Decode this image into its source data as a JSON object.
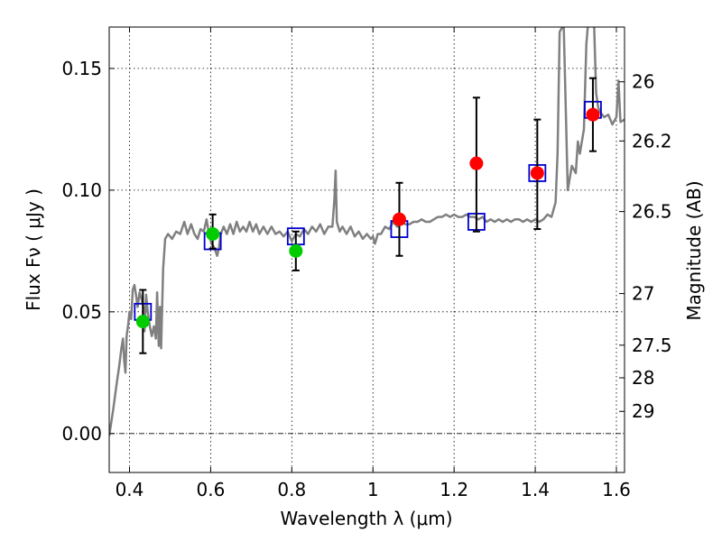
{
  "chart_data": {
    "type": "scatter",
    "xlabel": "Wavelength  λ (μm)",
    "ylabel": "Flux  Fν  ( μJy )",
    "y2label": "Magnitude (AB)",
    "xlim": [
      0.35,
      1.62
    ],
    "ylim": [
      -0.016,
      0.167
    ],
    "grid": true,
    "x_ticks": [
      {
        "value": 0.4,
        "label": "0.4"
      },
      {
        "value": 0.6,
        "label": "0.6"
      },
      {
        "value": 0.8,
        "label": "0.8"
      },
      {
        "value": 1.0,
        "label": "1"
      },
      {
        "value": 1.2,
        "label": "1.2"
      },
      {
        "value": 1.4,
        "label": "1.4"
      },
      {
        "value": 1.6,
        "label": "1.6"
      }
    ],
    "y_ticks": [
      {
        "value": 0.0,
        "label": "0.00"
      },
      {
        "value": 0.05,
        "label": "0.05"
      },
      {
        "value": 0.1,
        "label": "0.10"
      },
      {
        "value": 0.15,
        "label": "0.15"
      }
    ],
    "y2_ticks": [
      {
        "flux": 0.1445,
        "label": "26"
      },
      {
        "flux": 0.1202,
        "label": "26.2"
      },
      {
        "flux": 0.0912,
        "label": "26.5"
      },
      {
        "flux": 0.0575,
        "label": "27"
      },
      {
        "flux": 0.0363,
        "label": "27.5"
      },
      {
        "flux": 0.0229,
        "label": "28"
      },
      {
        "flux": 0.0091,
        "label": "29"
      }
    ],
    "series": [
      {
        "kind": "line",
        "color": "#808080",
        "points": [
          [
            0.35,
            -0.001
          ],
          [
            0.36,
            0.01
          ],
          [
            0.368,
            0.02
          ],
          [
            0.375,
            0.028
          ],
          [
            0.38,
            0.035
          ],
          [
            0.384,
            0.039
          ],
          [
            0.387,
            0.03
          ],
          [
            0.39,
            0.025
          ],
          [
            0.393,
            0.04
          ],
          [
            0.397,
            0.045
          ],
          [
            0.4,
            0.05
          ],
          [
            0.404,
            0.047
          ],
          [
            0.408,
            0.059
          ],
          [
            0.412,
            0.061
          ],
          [
            0.416,
            0.057
          ],
          [
            0.42,
            0.052
          ],
          [
            0.425,
            0.058
          ],
          [
            0.43,
            0.055
          ],
          [
            0.434,
            0.052
          ],
          [
            0.437,
            0.042
          ],
          [
            0.441,
            0.057
          ],
          [
            0.445,
            0.05
          ],
          [
            0.45,
            0.044
          ],
          [
            0.455,
            0.04
          ],
          [
            0.46,
            0.044
          ],
          [
            0.465,
            0.039
          ],
          [
            0.468,
            0.058
          ],
          [
            0.472,
            0.036
          ],
          [
            0.475,
            0.052
          ],
          [
            0.478,
            0.035
          ],
          [
            0.483,
            0.068
          ],
          [
            0.488,
            0.08
          ],
          [
            0.495,
            0.082
          ],
          [
            0.505,
            0.08
          ],
          [
            0.515,
            0.083
          ],
          [
            0.525,
            0.082
          ],
          [
            0.535,
            0.087
          ],
          [
            0.543,
            0.082
          ],
          [
            0.552,
            0.086
          ],
          [
            0.56,
            0.082
          ],
          [
            0.568,
            0.08
          ],
          [
            0.575,
            0.084
          ],
          [
            0.583,
            0.083
          ],
          [
            0.59,
            0.088
          ],
          [
            0.596,
            0.082
          ],
          [
            0.602,
            0.078
          ],
          [
            0.607,
            0.077
          ],
          [
            0.612,
            0.075
          ],
          [
            0.616,
            0.073
          ],
          [
            0.62,
            0.076
          ],
          [
            0.625,
            0.082
          ],
          [
            0.632,
            0.085
          ],
          [
            0.64,
            0.082
          ],
          [
            0.648,
            0.086
          ],
          [
            0.656,
            0.082
          ],
          [
            0.664,
            0.087
          ],
          [
            0.672,
            0.083
          ],
          [
            0.68,
            0.085
          ],
          [
            0.688,
            0.083
          ],
          [
            0.696,
            0.087
          ],
          [
            0.704,
            0.083
          ],
          [
            0.712,
            0.086
          ],
          [
            0.72,
            0.082
          ],
          [
            0.73,
            0.085
          ],
          [
            0.74,
            0.082
          ],
          [
            0.75,
            0.085
          ],
          [
            0.76,
            0.082
          ],
          [
            0.77,
            0.083
          ],
          [
            0.78,
            0.081
          ],
          [
            0.79,
            0.083
          ],
          [
            0.8,
            0.079
          ],
          [
            0.81,
            0.082
          ],
          [
            0.82,
            0.081
          ],
          [
            0.83,
            0.084
          ],
          [
            0.84,
            0.082
          ],
          [
            0.85,
            0.085
          ],
          [
            0.86,
            0.083
          ],
          [
            0.87,
            0.086
          ],
          [
            0.88,
            0.082
          ],
          [
            0.89,
            0.085
          ],
          [
            0.9,
            0.085
          ],
          [
            0.905,
            0.096
          ],
          [
            0.908,
            0.108
          ],
          [
            0.911,
            0.087
          ],
          [
            0.918,
            0.083
          ],
          [
            0.925,
            0.085
          ],
          [
            0.935,
            0.082
          ],
          [
            0.945,
            0.085
          ],
          [
            0.955,
            0.081
          ],
          [
            0.965,
            0.083
          ],
          [
            0.975,
            0.08
          ],
          [
            0.985,
            0.082
          ],
          [
            0.995,
            0.08
          ],
          [
            1.0,
            0.081
          ],
          [
            1.005,
            0.078
          ],
          [
            1.012,
            0.082
          ],
          [
            1.02,
            0.082
          ],
          [
            1.03,
            0.085
          ],
          [
            1.04,
            0.084
          ],
          [
            1.05,
            0.087
          ],
          [
            1.06,
            0.085
          ],
          [
            1.07,
            0.087
          ],
          [
            1.08,
            0.086
          ],
          [
            1.09,
            0.086
          ],
          [
            1.1,
            0.087
          ],
          [
            1.11,
            0.087
          ],
          [
            1.12,
            0.088
          ],
          [
            1.13,
            0.087
          ],
          [
            1.14,
            0.087
          ],
          [
            1.15,
            0.088
          ],
          [
            1.16,
            0.089
          ],
          [
            1.17,
            0.089
          ],
          [
            1.18,
            0.09
          ],
          [
            1.19,
            0.089
          ],
          [
            1.2,
            0.09
          ],
          [
            1.21,
            0.089
          ],
          [
            1.22,
            0.089
          ],
          [
            1.23,
            0.09
          ],
          [
            1.24,
            0.089
          ],
          [
            1.25,
            0.089
          ],
          [
            1.26,
            0.088
          ],
          [
            1.27,
            0.089
          ],
          [
            1.28,
            0.087
          ],
          [
            1.29,
            0.088
          ],
          [
            1.3,
            0.087
          ],
          [
            1.31,
            0.088
          ],
          [
            1.32,
            0.087
          ],
          [
            1.33,
            0.088
          ],
          [
            1.34,
            0.087
          ],
          [
            1.35,
            0.088
          ],
          [
            1.36,
            0.088
          ],
          [
            1.37,
            0.087
          ],
          [
            1.38,
            0.088
          ],
          [
            1.39,
            0.087
          ],
          [
            1.4,
            0.088
          ],
          [
            1.41,
            0.087
          ],
          [
            1.42,
            0.088
          ],
          [
            1.43,
            0.09
          ],
          [
            1.44,
            0.089
          ],
          [
            1.45,
            0.095
          ],
          [
            1.455,
            0.115
          ],
          [
            1.46,
            0.165
          ],
          [
            1.47,
            0.168
          ],
          [
            1.48,
            0.1
          ],
          [
            1.49,
            0.11
          ],
          [
            1.5,
            0.107
          ],
          [
            1.505,
            0.12
          ],
          [
            1.51,
            0.115
          ],
          [
            1.52,
            0.125
          ],
          [
            1.526,
            0.16
          ],
          [
            1.53,
            0.168
          ],
          [
            1.54,
            0.168
          ],
          [
            1.545,
            0.168
          ],
          [
            1.55,
            0.14
          ],
          [
            1.555,
            0.134
          ],
          [
            1.56,
            0.132
          ],
          [
            1.57,
            0.13
          ],
          [
            1.58,
            0.131
          ],
          [
            1.59,
            0.127
          ],
          [
            1.6,
            0.13
          ],
          [
            1.605,
            0.145
          ],
          [
            1.61,
            0.128
          ],
          [
            1.62,
            0.129
          ]
        ]
      },
      {
        "kind": "boxes",
        "color": "#0000cc",
        "points": [
          [
            0.433,
            0.05
          ],
          [
            0.605,
            0.079
          ],
          [
            0.81,
            0.081
          ],
          [
            1.065,
            0.084
          ],
          [
            1.255,
            0.087
          ],
          [
            1.405,
            0.107
          ],
          [
            1.542,
            0.133
          ]
        ]
      },
      {
        "kind": "errorbars",
        "color": "#000000",
        "items": [
          {
            "x": 0.433,
            "y": 0.046,
            "lo": 0.033,
            "hi": 0.059
          },
          {
            "x": 0.605,
            "y": 0.082,
            "lo": 0.076,
            "hi": 0.09
          },
          {
            "x": 0.81,
            "y": 0.075,
            "lo": 0.067,
            "hi": 0.083
          },
          {
            "x": 1.065,
            "y": 0.088,
            "lo": 0.073,
            "hi": 0.103
          },
          {
            "x": 1.255,
            "y": 0.111,
            "lo": 0.083,
            "hi": 0.138
          },
          {
            "x": 1.405,
            "y": 0.107,
            "lo": 0.084,
            "hi": 0.129
          },
          {
            "x": 1.542,
            "y": 0.131,
            "lo": 0.116,
            "hi": 0.146
          }
        ]
      },
      {
        "kind": "points",
        "color": "#00cc00",
        "points": [
          [
            0.433,
            0.046
          ],
          [
            0.605,
            0.082
          ],
          [
            0.81,
            0.075
          ]
        ]
      },
      {
        "kind": "points",
        "color": "#ff0000",
        "points": [
          [
            1.065,
            0.088
          ],
          [
            1.255,
            0.111
          ],
          [
            1.405,
            0.107
          ],
          [
            1.542,
            0.131
          ]
        ]
      }
    ]
  }
}
